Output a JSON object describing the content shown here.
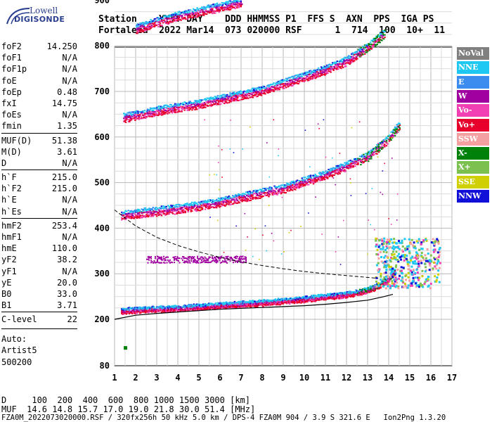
{
  "logo": {
    "line1": "Lowell",
    "line2": "DIGISONDE"
  },
  "header": {
    "labels": "Station    YYYY DAY    DDD HHMMSS P1  FFS S  AXN  PPS  IGA PS",
    "values": "Fortaleza  2022 Mar14  073 020000 RSF      1  714  100  10+  11"
  },
  "params": {
    "group1": [
      {
        "k": "foF2",
        "v": "14.250"
      },
      {
        "k": "foF1",
        "v": "N/A"
      },
      {
        "k": "foF1p",
        "v": "N/A"
      },
      {
        "k": "foE",
        "v": "N/A"
      },
      {
        "k": "foEp",
        "v": "0.48"
      },
      {
        "k": "fxI",
        "v": "14.75"
      },
      {
        "k": "foEs",
        "v": "N/A"
      },
      {
        "k": "fmin",
        "v": "1.35"
      }
    ],
    "group2": [
      {
        "k": "MUF(D)",
        "v": "51.38"
      },
      {
        "k": "M(D)",
        "v": "3.61"
      },
      {
        "k": "D",
        "v": "N/A"
      }
    ],
    "group3": [
      {
        "k": "h`F",
        "v": "215.0"
      },
      {
        "k": "h`F2",
        "v": "215.0"
      },
      {
        "k": "h`E",
        "v": "N/A"
      },
      {
        "k": "h`Es",
        "v": "N/A"
      }
    ],
    "group4": [
      {
        "k": "hmF2",
        "v": "253.4"
      },
      {
        "k": "hmF1",
        "v": "N/A"
      },
      {
        "k": "hmE",
        "v": "110.0"
      },
      {
        "k": "yF2",
        "v": "38.2"
      },
      {
        "k": "yF1",
        "v": "N/A"
      },
      {
        "k": "yE",
        "v": "20.0"
      },
      {
        "k": "B0",
        "v": "33.0"
      },
      {
        "k": "B1",
        "v": "3.71"
      }
    ],
    "group5": [
      {
        "k": "C-level",
        "v": "22"
      }
    ]
  },
  "notes": {
    "auto": "Auto:",
    "artist": "Artist5",
    "version": "500200"
  },
  "legend": [
    {
      "label": "NoVal",
      "color": "#808080"
    },
    {
      "label": "NNE",
      "color": "#1ec8f0"
    },
    {
      "label": "E",
      "color": "#3c8cf0"
    },
    {
      "label": "W",
      "color": "#a000a0"
    },
    {
      "label": "Vo-",
      "color": "#f040b4"
    },
    {
      "label": "Vo+",
      "color": "#e8002c"
    },
    {
      "label": "SSW",
      "color": "#f4a0a0"
    },
    {
      "label": "X-",
      "color": "#00820a"
    },
    {
      "label": "X+",
      "color": "#7cc050"
    },
    {
      "label": "SSE",
      "color": "#d0d000"
    },
    {
      "label": "NNW",
      "color": "#1010d8"
    }
  ],
  "chart_data": {
    "type": "scatter",
    "xlim": [
      1,
      17
    ],
    "ylim": [
      80,
      900
    ],
    "xticks": [
      1,
      2,
      3,
      4,
      5,
      6,
      7,
      8,
      9,
      10,
      11,
      12,
      13,
      14,
      15,
      16,
      17
    ],
    "yticks": [
      80,
      200,
      300,
      400,
      500,
      600,
      700,
      800,
      900
    ],
    "traces": [
      {
        "name": "F2 trace o",
        "x": [
          1.3,
          2,
          3,
          4,
          5,
          6,
          7,
          8,
          9,
          10,
          11,
          12,
          12.5,
          13,
          13.5,
          14,
          14.3
        ],
        "y": [
          220,
          222,
          224,
          226,
          229,
          232,
          235,
          238,
          242,
          246,
          251,
          256,
          260,
          266,
          275,
          290,
          310
        ]
      },
      {
        "name": "2nd hop",
        "x": [
          1.3,
          2,
          3,
          4,
          5,
          6,
          7,
          8,
          9,
          10,
          11,
          12,
          13,
          14,
          14.5
        ],
        "y": [
          430,
          435,
          440,
          445,
          452,
          460,
          470,
          480,
          490,
          505,
          520,
          540,
          560,
          600,
          630
        ]
      },
      {
        "name": "3rd hop",
        "x": [
          1.4,
          2,
          3,
          4,
          5,
          6,
          7,
          8,
          9,
          10,
          11,
          12,
          13,
          13.8
        ],
        "y": [
          645,
          650,
          660,
          668,
          675,
          685,
          695,
          705,
          720,
          735,
          750,
          770,
          800,
          830
        ]
      },
      {
        "name": "4th hop",
        "x": [
          2,
          3,
          4,
          5,
          6,
          7
        ],
        "y": [
          840,
          855,
          868,
          878,
          888,
          898
        ]
      }
    ],
    "profile": {
      "x": [
        1,
        2,
        3,
        4,
        5,
        6,
        7,
        8,
        9,
        10,
        11,
        12,
        13,
        13.8,
        14.2
      ],
      "y": [
        200,
        209,
        213,
        216,
        219,
        222,
        224,
        226,
        228,
        230,
        233,
        237,
        242,
        250,
        255
      ]
    },
    "dashed": {
      "x": [
        1,
        2,
        3,
        4,
        5,
        6,
        7,
        8,
        9,
        10,
        11,
        12,
        13,
        13.5
      ],
      "y": [
        440,
        405,
        380,
        362,
        348,
        336,
        326,
        318,
        311,
        305,
        300,
        296,
        292,
        290
      ]
    },
    "isolated": [
      {
        "x": 1.5,
        "y": 127
      }
    ]
  },
  "footer": {
    "d_row": "D     100  200  400  600  800 1000 1500 3000 [km]",
    "muf_row": "MUF  14.6 14.8 15.7 17.0 19.0 21.8 30.0 51.4 [MHz]",
    "info": "FZA0M_2022073020000.RSF / 320fx256h 50 kHz 5.0 km / DPS-4 FZA0M 904 / 3.9 S 321.6 E   Ion2Png 1.3.20"
  }
}
